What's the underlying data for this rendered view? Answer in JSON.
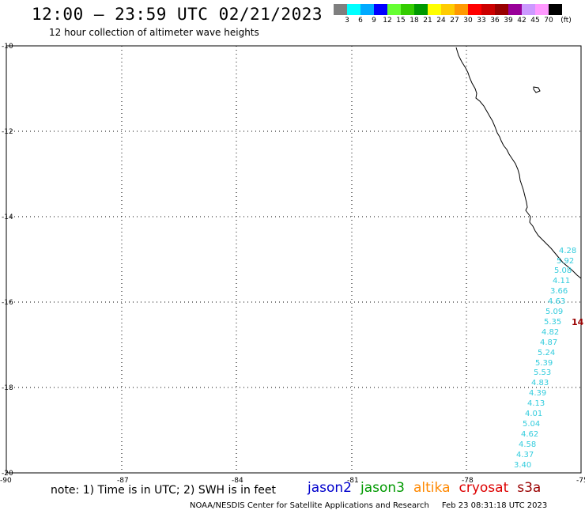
{
  "header": {
    "title": "12:00 – 23:59 UTC 02/21/2023",
    "subtitle": "12 hour collection of altimeter wave heights"
  },
  "legend": {
    "colors": [
      "#7f7f7f",
      "#00ffff",
      "#00aaff",
      "#0000ff",
      "#66ff33",
      "#33cc00",
      "#009900",
      "#ffff00",
      "#ffcc00",
      "#ff9900",
      "#ff0000",
      "#cc0000",
      "#990000",
      "#990099",
      "#cc99ff",
      "#ff99ff",
      "#000000"
    ],
    "labels": [
      "3",
      "6",
      "9",
      "12",
      "15",
      "18",
      "21",
      "24",
      "27",
      "30",
      "33",
      "36",
      "39",
      "42",
      "45",
      "70",
      "(ft)"
    ]
  },
  "axes": {
    "lat_ticks": [
      "-10",
      "-12",
      "-14",
      "-16",
      "-18",
      "-20"
    ],
    "lon_ticks": [
      "-90",
      "-87",
      "-84",
      "-81",
      "-78",
      "-75"
    ]
  },
  "observations": {
    "color": "#33ccdd",
    "values": [
      "4.28",
      "5.92",
      "5.08",
      "4.11",
      "3.66",
      "4.63",
      "5.09",
      "5.35",
      "4.82",
      "4.87",
      "5.24",
      "5.39",
      "5.53",
      "4.83",
      "4.39",
      "4.13",
      "4.01",
      "5.04",
      "4.62",
      "4.58",
      "4.37",
      "3.40"
    ]
  },
  "flag": {
    "value": "14",
    "color": "#990000"
  },
  "footer": {
    "note": "note: 1) Time is in UTC; 2) SWH is in feet",
    "satellites": [
      {
        "name": "jason2",
        "color": "#0000cc"
      },
      {
        "name": "jason3",
        "color": "#009900"
      },
      {
        "name": "altika",
        "color": "#ff8800"
      },
      {
        "name": "cryosat",
        "color": "#dd0000"
      },
      {
        "name": "s3a",
        "color": "#990000"
      }
    ],
    "credit": "NOAA/NESDIS Center for Satellite Applications and Research",
    "timestamp": "Feb 23 08:31:18 UTC 2023"
  }
}
